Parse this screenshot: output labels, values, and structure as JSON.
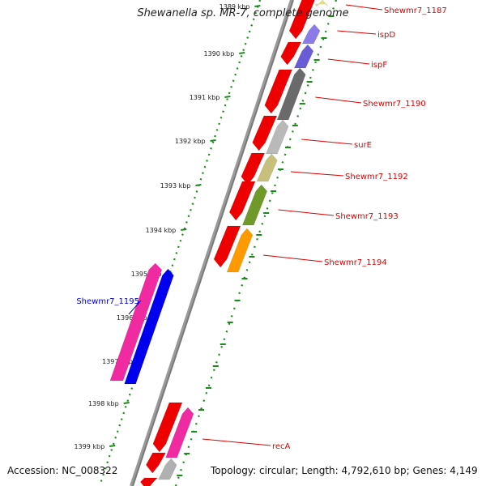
{
  "title": "Shewanella sp. MR-7, complete genome",
  "accession": "Accession: NC_008322",
  "summary": "Topology: circular; Length: 4,792,610 bp; Genes: 4,149",
  "colors": {
    "backbone": "#7a7a7a",
    "tick": "#1a8a1a",
    "forward_label": "#dd0000",
    "reverse_label": "#0000cc"
  },
  "ticks": [
    "1389 kbp",
    "1390 kbp",
    "1391 kbp",
    "1392 kbp",
    "1393 kbp",
    "1394 kbp",
    "1395 kbp",
    "1396 kbp",
    "1397 kbp",
    "1398 kbp",
    "1399 kbp"
  ],
  "genes": [
    {
      "label": "Shewmr7_1187",
      "color": "#dd0000"
    },
    {
      "label": "ispD",
      "color": "#dd0000"
    },
    {
      "label": "ispF",
      "color": "#dd0000"
    },
    {
      "label": "Shewmr7_1190",
      "color": "#dd0000"
    },
    {
      "label": "surE",
      "color": "#dd0000"
    },
    {
      "label": "Shewmr7_1192",
      "color": "#dd0000"
    },
    {
      "label": "Shewmr7_1193",
      "color": "#dd0000"
    },
    {
      "label": "Shewmr7_1194",
      "color": "#dd0000"
    },
    {
      "label": "Shewmr7_1195",
      "color": "#0000cc"
    },
    {
      "label": "recA",
      "color": "#dd0000"
    }
  ]
}
